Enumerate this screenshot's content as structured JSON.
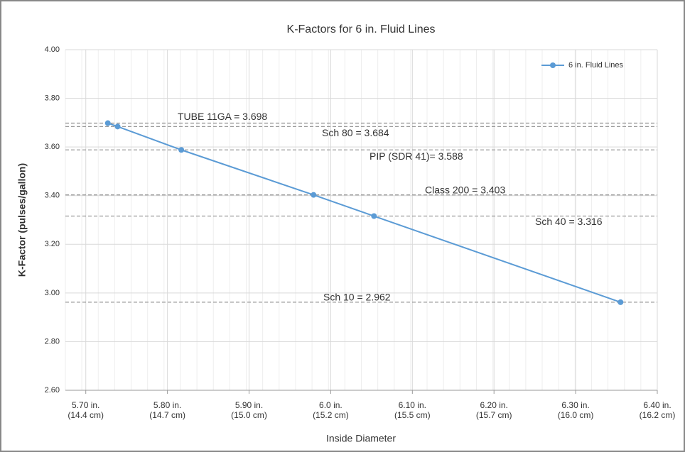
{
  "chart_data": {
    "type": "line",
    "title": "K-Factors for 6 in. Fluid Lines",
    "x_label": "Inside Diameter",
    "y_label": "K-Factor (pulses/gallon)",
    "x": [
      5.727,
      5.739,
      5.817,
      5.979,
      6.053,
      6.355
    ],
    "series": [
      {
        "name": "6 in. Fluid Lines",
        "color": "#5b9bd5",
        "values": [
          3.698,
          3.684,
          3.588,
          3.403,
          3.316,
          2.962
        ]
      }
    ],
    "xlim": [
      5.675,
      6.4
    ],
    "xticks": [
      {
        "value": 5.7,
        "label": "5.70 in.\n(14.4 cm)"
      },
      {
        "value": 5.8,
        "label": "5.80 in.\n(14.7 cm)"
      },
      {
        "value": 5.9,
        "label": "5.90 in.\n(15.0 cm)"
      },
      {
        "value": 6.0,
        "label": "6.0 in.\n(15.2 cm)"
      },
      {
        "value": 6.1,
        "label": "6.10 in.\n(15.5 cm)"
      },
      {
        "value": 6.2,
        "label": "6.20 in.\n(15.7 cm)"
      },
      {
        "value": 6.3,
        "label": "6.30 in.\n(16.0 cm)"
      },
      {
        "value": 6.4,
        "label": "6.40 in.\n(16.2 cm)"
      }
    ],
    "ylim": [
      2.6,
      4.0
    ],
    "yticks": [
      {
        "value": 2.6,
        "label": "2.60"
      },
      {
        "value": 2.8,
        "label": "2.80"
      },
      {
        "value": 3.0,
        "label": "3.00"
      },
      {
        "value": 3.2,
        "label": "3.20"
      },
      {
        "value": 3.4,
        "label": "3.40"
      },
      {
        "value": 3.6,
        "label": "3.60"
      },
      {
        "value": 3.8,
        "label": "3.80"
      },
      {
        "value": 4.0,
        "label": "4.00"
      }
    ],
    "reference_lines": [
      {
        "label": "TUBE 11GA = 3.698",
        "value": 3.698
      },
      {
        "label": "Sch 80 = 3.684",
        "value": 3.684
      },
      {
        "label": "PIP (SDR 41)= 3.588",
        "value": 3.588
      },
      {
        "label": "Class 200 = 3.403",
        "value": 3.403
      },
      {
        "label": "Sch 40 = 3.316",
        "value": 3.316
      },
      {
        "label": "Sch 10 = 2.962",
        "value": 2.962
      }
    ],
    "grid": true,
    "legend": "upper right"
  }
}
